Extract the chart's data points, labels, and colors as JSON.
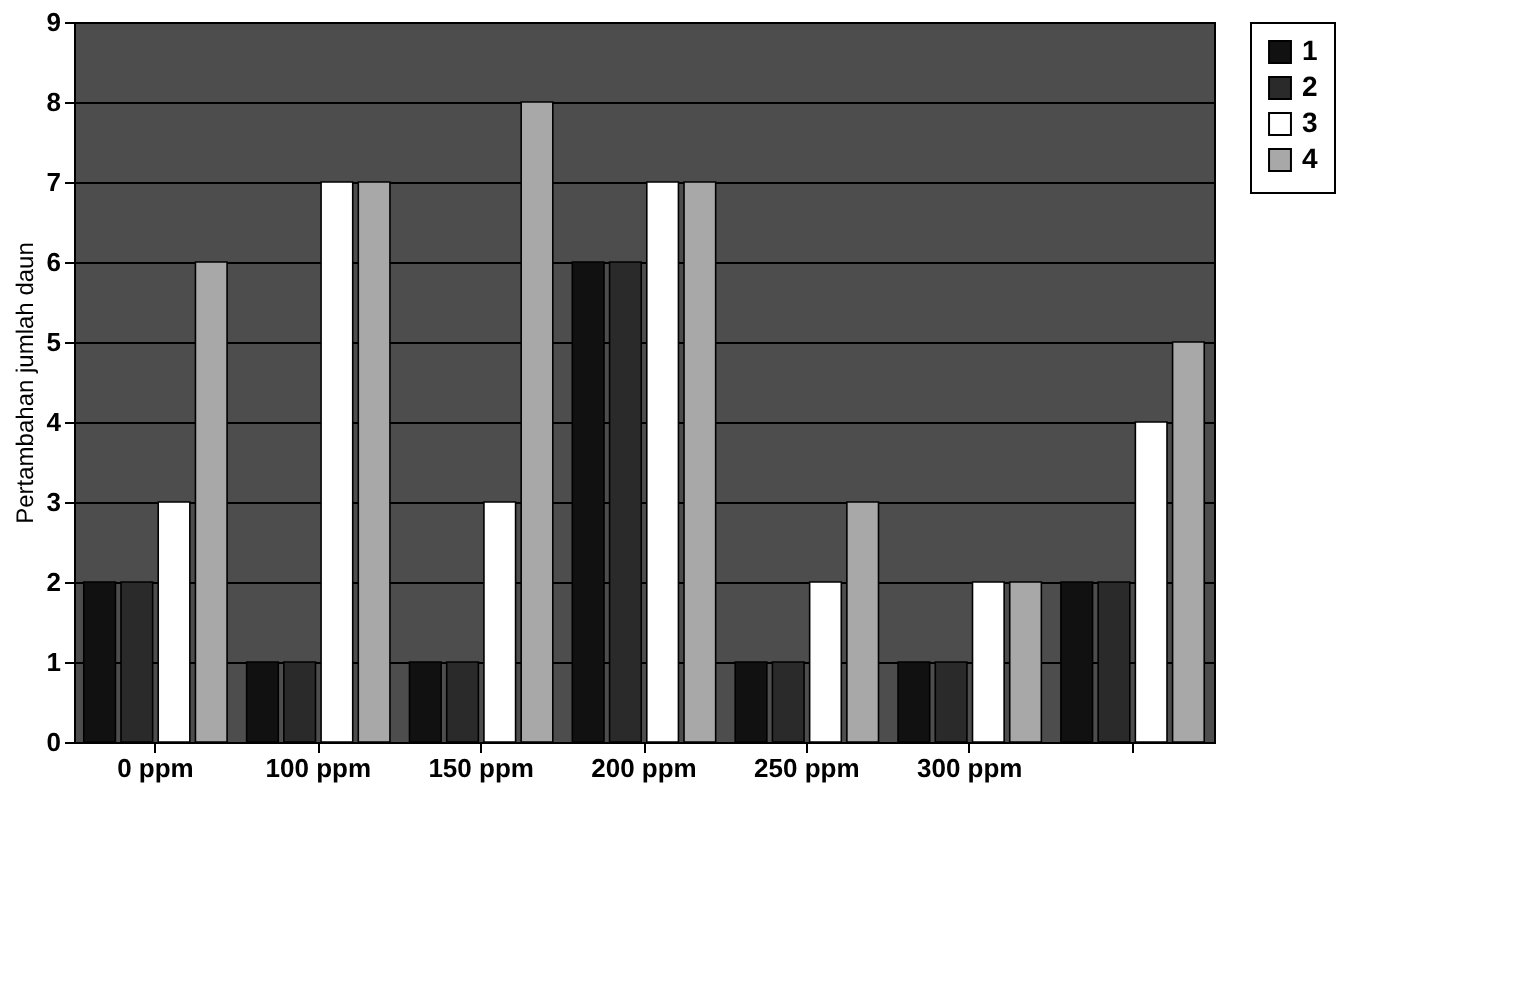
{
  "chart_data": {
    "type": "bar",
    "ylabel": "Pertambahan jumlah daun",
    "categories": [
      "0 ppm",
      "100 ppm",
      "150 ppm",
      "200 ppm",
      "250 ppm",
      "300 ppm",
      null
    ],
    "series": [
      {
        "name": "1",
        "color": "#111111",
        "values": [
          2,
          1,
          1,
          6,
          1,
          1,
          2
        ]
      },
      {
        "name": "2",
        "color": "#2a2a2a",
        "values": [
          2,
          1,
          1,
          6,
          1,
          1,
          2
        ]
      },
      {
        "name": "3",
        "color": "#ffffff",
        "values": [
          3,
          7,
          3,
          7,
          2,
          2,
          4
        ]
      },
      {
        "name": "4",
        "color": "#a8a8a8",
        "values": [
          6,
          7,
          8,
          7,
          3,
          2,
          5
        ]
      }
    ],
    "ylim": [
      0,
      9
    ],
    "yticks": [
      0,
      1,
      2,
      3,
      4,
      5,
      6,
      7,
      8,
      9
    ],
    "grid": "y",
    "legend": "right"
  }
}
